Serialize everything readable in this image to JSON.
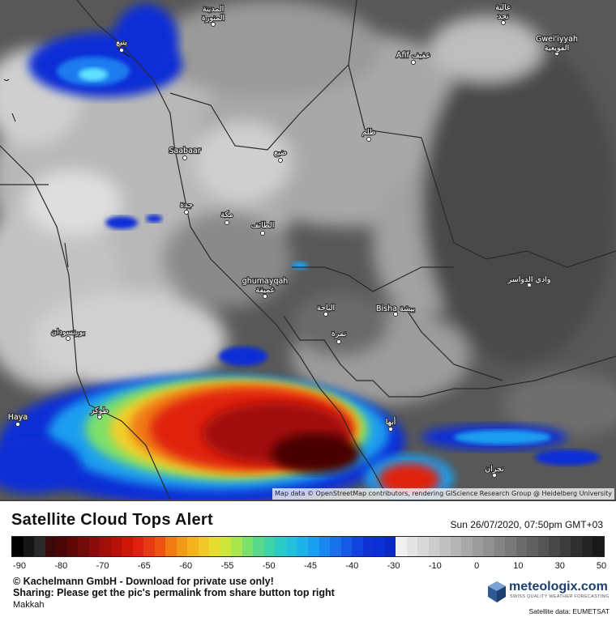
{
  "map": {
    "attribution": "Map data © OpenStreetMap contributors, rendering GIScience Research Group @ Heidelberg University",
    "cities": [
      {
        "name": "المدينة المنورة",
        "line1": "المدينة",
        "line2": "المنورة"
      },
      {
        "name": "ينبع",
        "line1": "ينبع",
        "line2": ""
      },
      {
        "name": "Saabaar",
        "line1": "Saabaar",
        "line2": ""
      },
      {
        "name": "جدة",
        "line1": "جدة",
        "line2": ""
      },
      {
        "name": "مكة",
        "line1": "مكة",
        "line2": ""
      },
      {
        "name": "الطائف",
        "line1": "الطائف",
        "line2": ""
      },
      {
        "name": "ظلم",
        "line1": "ظلم",
        "line2": ""
      },
      {
        "name": "ضبع",
        "line1": "ضبع",
        "line2": ""
      },
      {
        "name": "Afif عفيف",
        "line1": "Afif عفيف",
        "line2": ""
      },
      {
        "name": "Gwei'iyyah القويعية",
        "line1": "Gwei'iyyah",
        "line2": "القويعية"
      },
      {
        "name": "عالية نجد",
        "line1": "عالية",
        "line2": "نجد"
      },
      {
        "name": "ghumayqah غميقة",
        "line1": "ghumayqah",
        "line2": "غميقة"
      },
      {
        "name": "الباحة",
        "line1": "الباحة",
        "line2": ""
      },
      {
        "name": "Bisha بيشة",
        "line1": "Bisha بيشة",
        "line2": ""
      },
      {
        "name": "نمرة",
        "line1": "نمرة",
        "line2": ""
      },
      {
        "name": "وادي الدواسر",
        "line1": "وادي الدواسر",
        "line2": ""
      },
      {
        "name": "بورتسودان",
        "line1": "بورتسودان",
        "line2": ""
      },
      {
        "name": "Haya",
        "line1": "Haya",
        "line2": ""
      },
      {
        "name": "طوكر",
        "line1": "طوكر",
        "line2": ""
      },
      {
        "name": "أبها",
        "line1": "أبها",
        "line2": ""
      },
      {
        "name": "نجران",
        "line1": "نجران",
        "line2": ""
      }
    ]
  },
  "legend": {
    "title": "Satellite Cloud Tops Alert",
    "datetime": "Sun 26/07/2020, 07:50pm GMT+03",
    "ticks": [
      "-90",
      "-80",
      "-70",
      "-65",
      "-60",
      "-55",
      "-50",
      "-45",
      "-40",
      "-30",
      "-10",
      "0",
      "10",
      "30",
      "50"
    ],
    "copyright": "© Kachelmann GmbH - Download for private use only!",
    "share": "Sharing: Please get the pic's permalink from share button top right",
    "location": "Makkah",
    "logo": "meteologix.com",
    "logo_sub": "SWISS QUALITY WEATHER FORECASTING",
    "satellite": "Satellite data: EUMETSAT"
  }
}
